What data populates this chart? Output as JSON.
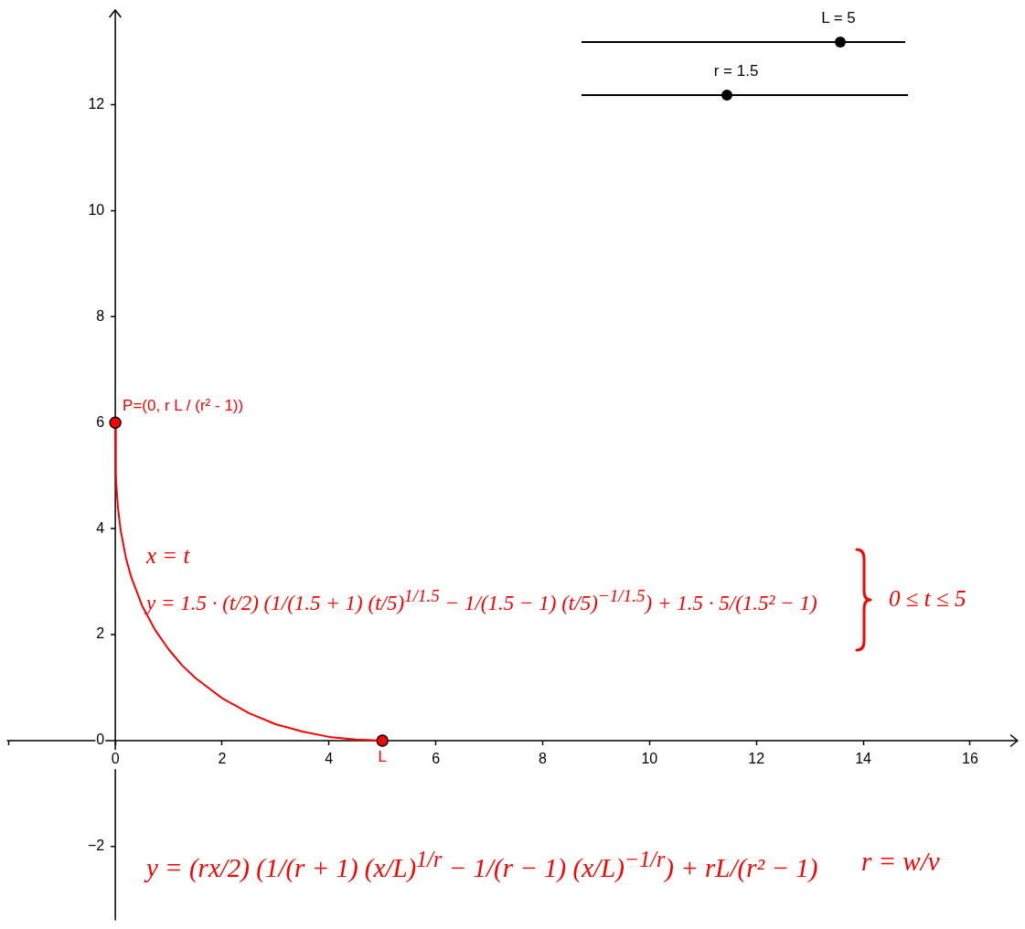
{
  "chart_data": {
    "type": "line",
    "xlim": [
      -2.03,
      16.9
    ],
    "ylim": [
      -3.39,
      13.81
    ],
    "xticks": [
      {
        "value": -2,
        "label": null
      },
      0,
      2,
      4,
      6,
      8,
      10,
      12,
      14,
      16
    ],
    "yticks": [
      {
        "value": -2,
        "label": "−2"
      },
      0,
      2,
      4,
      6,
      8,
      10,
      12
    ],
    "series": [
      {
        "type": "line",
        "color": "#ff0000",
        "marker": "none",
        "x": [
          0,
          0.01,
          0.02,
          0.05,
          0.1,
          0.2,
          0.3,
          0.5,
          0.75,
          1,
          1.25,
          1.5,
          2,
          2.5,
          3,
          3.5,
          4,
          4.5,
          5
        ],
        "values": [
          6,
          5.06,
          4.81,
          4.39,
          3.97,
          3.44,
          3.08,
          2.55,
          2.08,
          1.72,
          1.42,
          1.18,
          0.8,
          0.52,
          0.31,
          0.17,
          0.07,
          0.02,
          0
        ]
      },
      {
        "type": "scatter",
        "color": "#ff0000",
        "marker": "circle",
        "x": [
          0,
          5
        ],
        "values": [
          6,
          0
        ]
      }
    ],
    "annotations": [
      {
        "text": "P=(0, r L / (r² - 1))",
        "x": 0,
        "y": 6
      },
      {
        "text": "L",
        "x": 5,
        "y": 0
      },
      "L = 5",
      "r = 1.5",
      "x = t",
      "y = 1.5 · (t/2) (1/(1.5 + 1) (t/5)$^{1/1.5}$ − 1/(1.5 − 1) (t/5)$^{−1/1.5}$) + 1.5 · 5/(1.5² − 1)",
      "0 ≤ t ≤ 5",
      "y = (rx/2) (1/(r + 1) (x/L)$^{1/r}$ − 1/(r − 1) (x/L)$^{−1/r}$) + rL/(r² − 1)",
      "r = w/v"
    ]
  }
}
